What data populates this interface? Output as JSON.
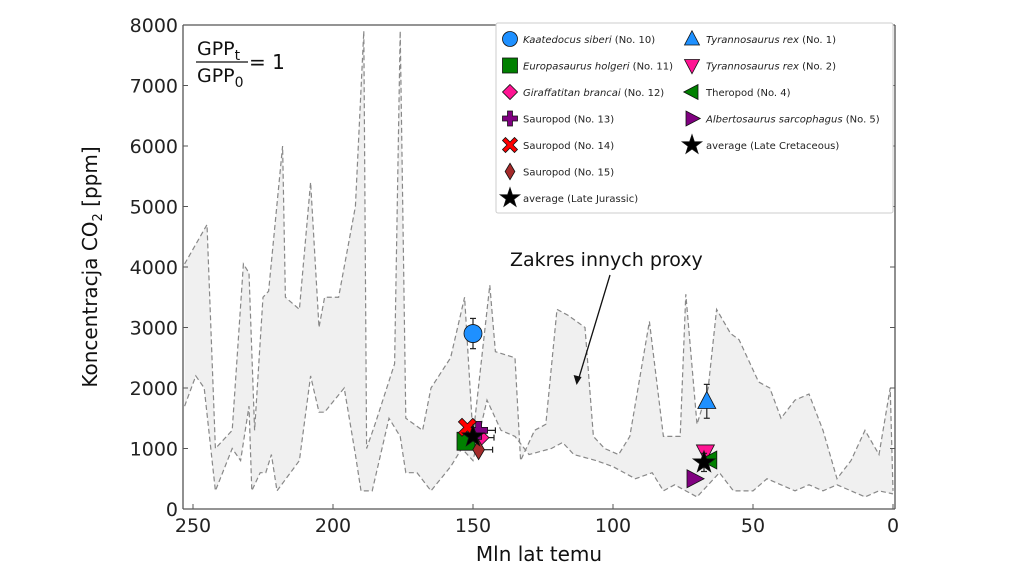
{
  "chart_data": {
    "type": "scatter",
    "title": "",
    "xlabel": "Mln lat temu",
    "ylabel_main": "Koncentracja CO",
    "ylabel_sub": "2",
    "ylabel_unit": " [ppm]",
    "xlim": [
      253,
      0
    ],
    "ylim": [
      0,
      8000
    ],
    "x_ticks": [
      250,
      200,
      150,
      100,
      50,
      0
    ],
    "y_ticks": [
      0,
      1000,
      2000,
      3000,
      4000,
      5000,
      6000,
      7000,
      8000
    ],
    "grid": false,
    "legend_position": "top-right",
    "formula": {
      "num": "GPP",
      "num_sub": "t",
      "den": "GPP",
      "den_sub": "0",
      "rhs": "= 1"
    },
    "annotation": {
      "text": "Zakres innych proxy",
      "arrow_to": [
        113,
        2050
      ]
    },
    "proxy_envelope": {
      "upper": [
        [
          253,
          4050
        ],
        [
          245,
          4700
        ],
        [
          242,
          1000
        ],
        [
          236,
          1300
        ],
        [
          232,
          4050
        ],
        [
          230,
          3900
        ],
        [
          228,
          1300
        ],
        [
          225,
          3500
        ],
        [
          223,
          3600
        ],
        [
          218,
          6000
        ],
        [
          217,
          3500
        ],
        [
          212,
          3300
        ],
        [
          208,
          5400
        ],
        [
          205,
          3000
        ],
        [
          203,
          3500
        ],
        [
          198,
          3500
        ],
        [
          192,
          5000
        ],
        [
          189,
          7900
        ],
        [
          188,
          1000
        ],
        [
          185,
          1400
        ],
        [
          178,
          2400
        ],
        [
          176,
          7900
        ],
        [
          174,
          1500
        ],
        [
          168,
          1300
        ],
        [
          165,
          2000
        ],
        [
          158,
          2500
        ],
        [
          153,
          3500
        ],
        [
          150,
          1200
        ],
        [
          144,
          3700
        ],
        [
          142,
          2600
        ],
        [
          135,
          2500
        ],
        [
          133,
          800
        ],
        [
          128,
          1300
        ],
        [
          124,
          1400
        ],
        [
          120,
          3300
        ],
        [
          116,
          3200
        ],
        [
          110,
          3000
        ],
        [
          107,
          1200
        ],
        [
          103,
          1000
        ],
        [
          98,
          900
        ],
        [
          94,
          1200
        ],
        [
          87,
          3100
        ],
        [
          82,
          1200
        ],
        [
          76,
          1200
        ],
        [
          74,
          3550
        ],
        [
          70,
          1400
        ],
        [
          66,
          2000
        ],
        [
          63,
          3300
        ],
        [
          58,
          2900
        ],
        [
          55,
          2800
        ],
        [
          48,
          2100
        ],
        [
          44,
          2000
        ],
        [
          40,
          1500
        ],
        [
          35,
          1800
        ],
        [
          30,
          1900
        ],
        [
          25,
          1300
        ],
        [
          20,
          500
        ],
        [
          15,
          800
        ],
        [
          10,
          1300
        ],
        [
          5,
          900
        ],
        [
          1,
          2000
        ],
        [
          0,
          300
        ]
      ],
      "lower": [
        [
          253,
          1700
        ],
        [
          249,
          2200
        ],
        [
          246,
          2000
        ],
        [
          242,
          300
        ],
        [
          236,
          1000
        ],
        [
          233,
          800
        ],
        [
          230,
          1700
        ],
        [
          229,
          300
        ],
        [
          226,
          600
        ],
        [
          224,
          600
        ],
        [
          222,
          900
        ],
        [
          220,
          300
        ],
        [
          212,
          800
        ],
        [
          208,
          2200
        ],
        [
          205,
          1600
        ],
        [
          203,
          1600
        ],
        [
          196,
          2000
        ],
        [
          192,
          900
        ],
        [
          190,
          300
        ],
        [
          186,
          300
        ],
        [
          180,
          1500
        ],
        [
          176,
          1200
        ],
        [
          174,
          600
        ],
        [
          170,
          600
        ],
        [
          165,
          300
        ],
        [
          158,
          700
        ],
        [
          154,
          1000
        ],
        [
          150,
          800
        ],
        [
          145,
          1800
        ],
        [
          140,
          1300
        ],
        [
          135,
          1200
        ],
        [
          130,
          900
        ],
        [
          122,
          1000
        ],
        [
          118,
          1100
        ],
        [
          114,
          900
        ],
        [
          106,
          800
        ],
        [
          100,
          700
        ],
        [
          92,
          500
        ],
        [
          86,
          600
        ],
        [
          82,
          300
        ],
        [
          78,
          400
        ],
        [
          74,
          300
        ],
        [
          70,
          200
        ],
        [
          66,
          400
        ],
        [
          62,
          600
        ],
        [
          57,
          300
        ],
        [
          50,
          300
        ],
        [
          45,
          500
        ],
        [
          40,
          400
        ],
        [
          35,
          300
        ],
        [
          30,
          400
        ],
        [
          25,
          300
        ],
        [
          20,
          400
        ],
        [
          15,
          300
        ],
        [
          10,
          200
        ],
        [
          5,
          300
        ],
        [
          0,
          250
        ]
      ]
    },
    "series": [
      {
        "name": "Kaatedocus siberi",
        "num": "(No. 10)",
        "italic": true,
        "marker": "circle",
        "color": "#1E90FF",
        "x": 150,
        "y": 2900,
        "yerr": 250,
        "xerr": 0
      },
      {
        "name": "Europasaurus holgeri",
        "num": "(No. 11)",
        "italic": true,
        "marker": "square",
        "color": "#008000",
        "x": 152.5,
        "y": 1120,
        "yerr": 0,
        "xerr": 0
      },
      {
        "name": "Giraffatitan brancai",
        "num": "(No. 12)",
        "italic": true,
        "marker": "diamond",
        "color": "#FF1493",
        "x": 147.5,
        "y": 1180,
        "yerr": 0,
        "xerr": 5
      },
      {
        "name": "Sauropod",
        "num": "(No. 13)",
        "italic": false,
        "marker": "plus",
        "color": "#800080",
        "x": 148,
        "y": 1300,
        "yerr": 0,
        "xerr": 6
      },
      {
        "name": "Sauropod",
        "num": "(No. 14)",
        "italic": false,
        "marker": "x",
        "color": "#FF0000",
        "x": 152,
        "y": 1350,
        "yerr": 0,
        "xerr": 0
      },
      {
        "name": "Sauropod",
        "num": "(No. 15)",
        "italic": false,
        "marker": "thin-diamond",
        "color": "#A52A2A",
        "x": 148,
        "y": 980,
        "yerr": 0,
        "xerr": 5
      },
      {
        "name": "average (Late Jurassic)",
        "num": "",
        "italic": false,
        "marker": "star",
        "color": "#000000",
        "x": 150,
        "y": 1200,
        "yerr": 0,
        "xerr": 0
      },
      {
        "name": "Tyrannosaurus rex",
        "num": "(No. 1)",
        "italic": true,
        "marker": "triangle-up",
        "color": "#1E90FF",
        "x": 66.5,
        "y": 1780,
        "yerr": 280,
        "xerr": 0
      },
      {
        "name": "Tyrannosaurus rex",
        "num": "(No. 2)",
        "italic": true,
        "marker": "triangle-down",
        "color": "#FF1493",
        "x": 67,
        "y": 940,
        "yerr": 0,
        "xerr": 0
      },
      {
        "name": "Theropod",
        "num": "(No. 4)",
        "italic": false,
        "marker": "triangle-left",
        "color": "#008000",
        "x": 65.5,
        "y": 810,
        "yerr": 0,
        "xerr": 0
      },
      {
        "name": "Albertosaurus sarcophagus",
        "num": "(No. 5)",
        "italic": true,
        "marker": "triangle-right",
        "color": "#800080",
        "x": 71,
        "y": 500,
        "yerr": 0,
        "xerr": 0
      },
      {
        "name": "average (Late Cretaceous)",
        "num": "",
        "italic": false,
        "marker": "star",
        "color": "#000000",
        "x": 67.5,
        "y": 770,
        "yerr": 150,
        "xerr": 0
      }
    ],
    "legend_columns": [
      [
        0,
        1,
        2,
        3,
        4,
        5,
        6
      ],
      [
        7,
        8,
        9,
        10,
        11
      ]
    ]
  }
}
